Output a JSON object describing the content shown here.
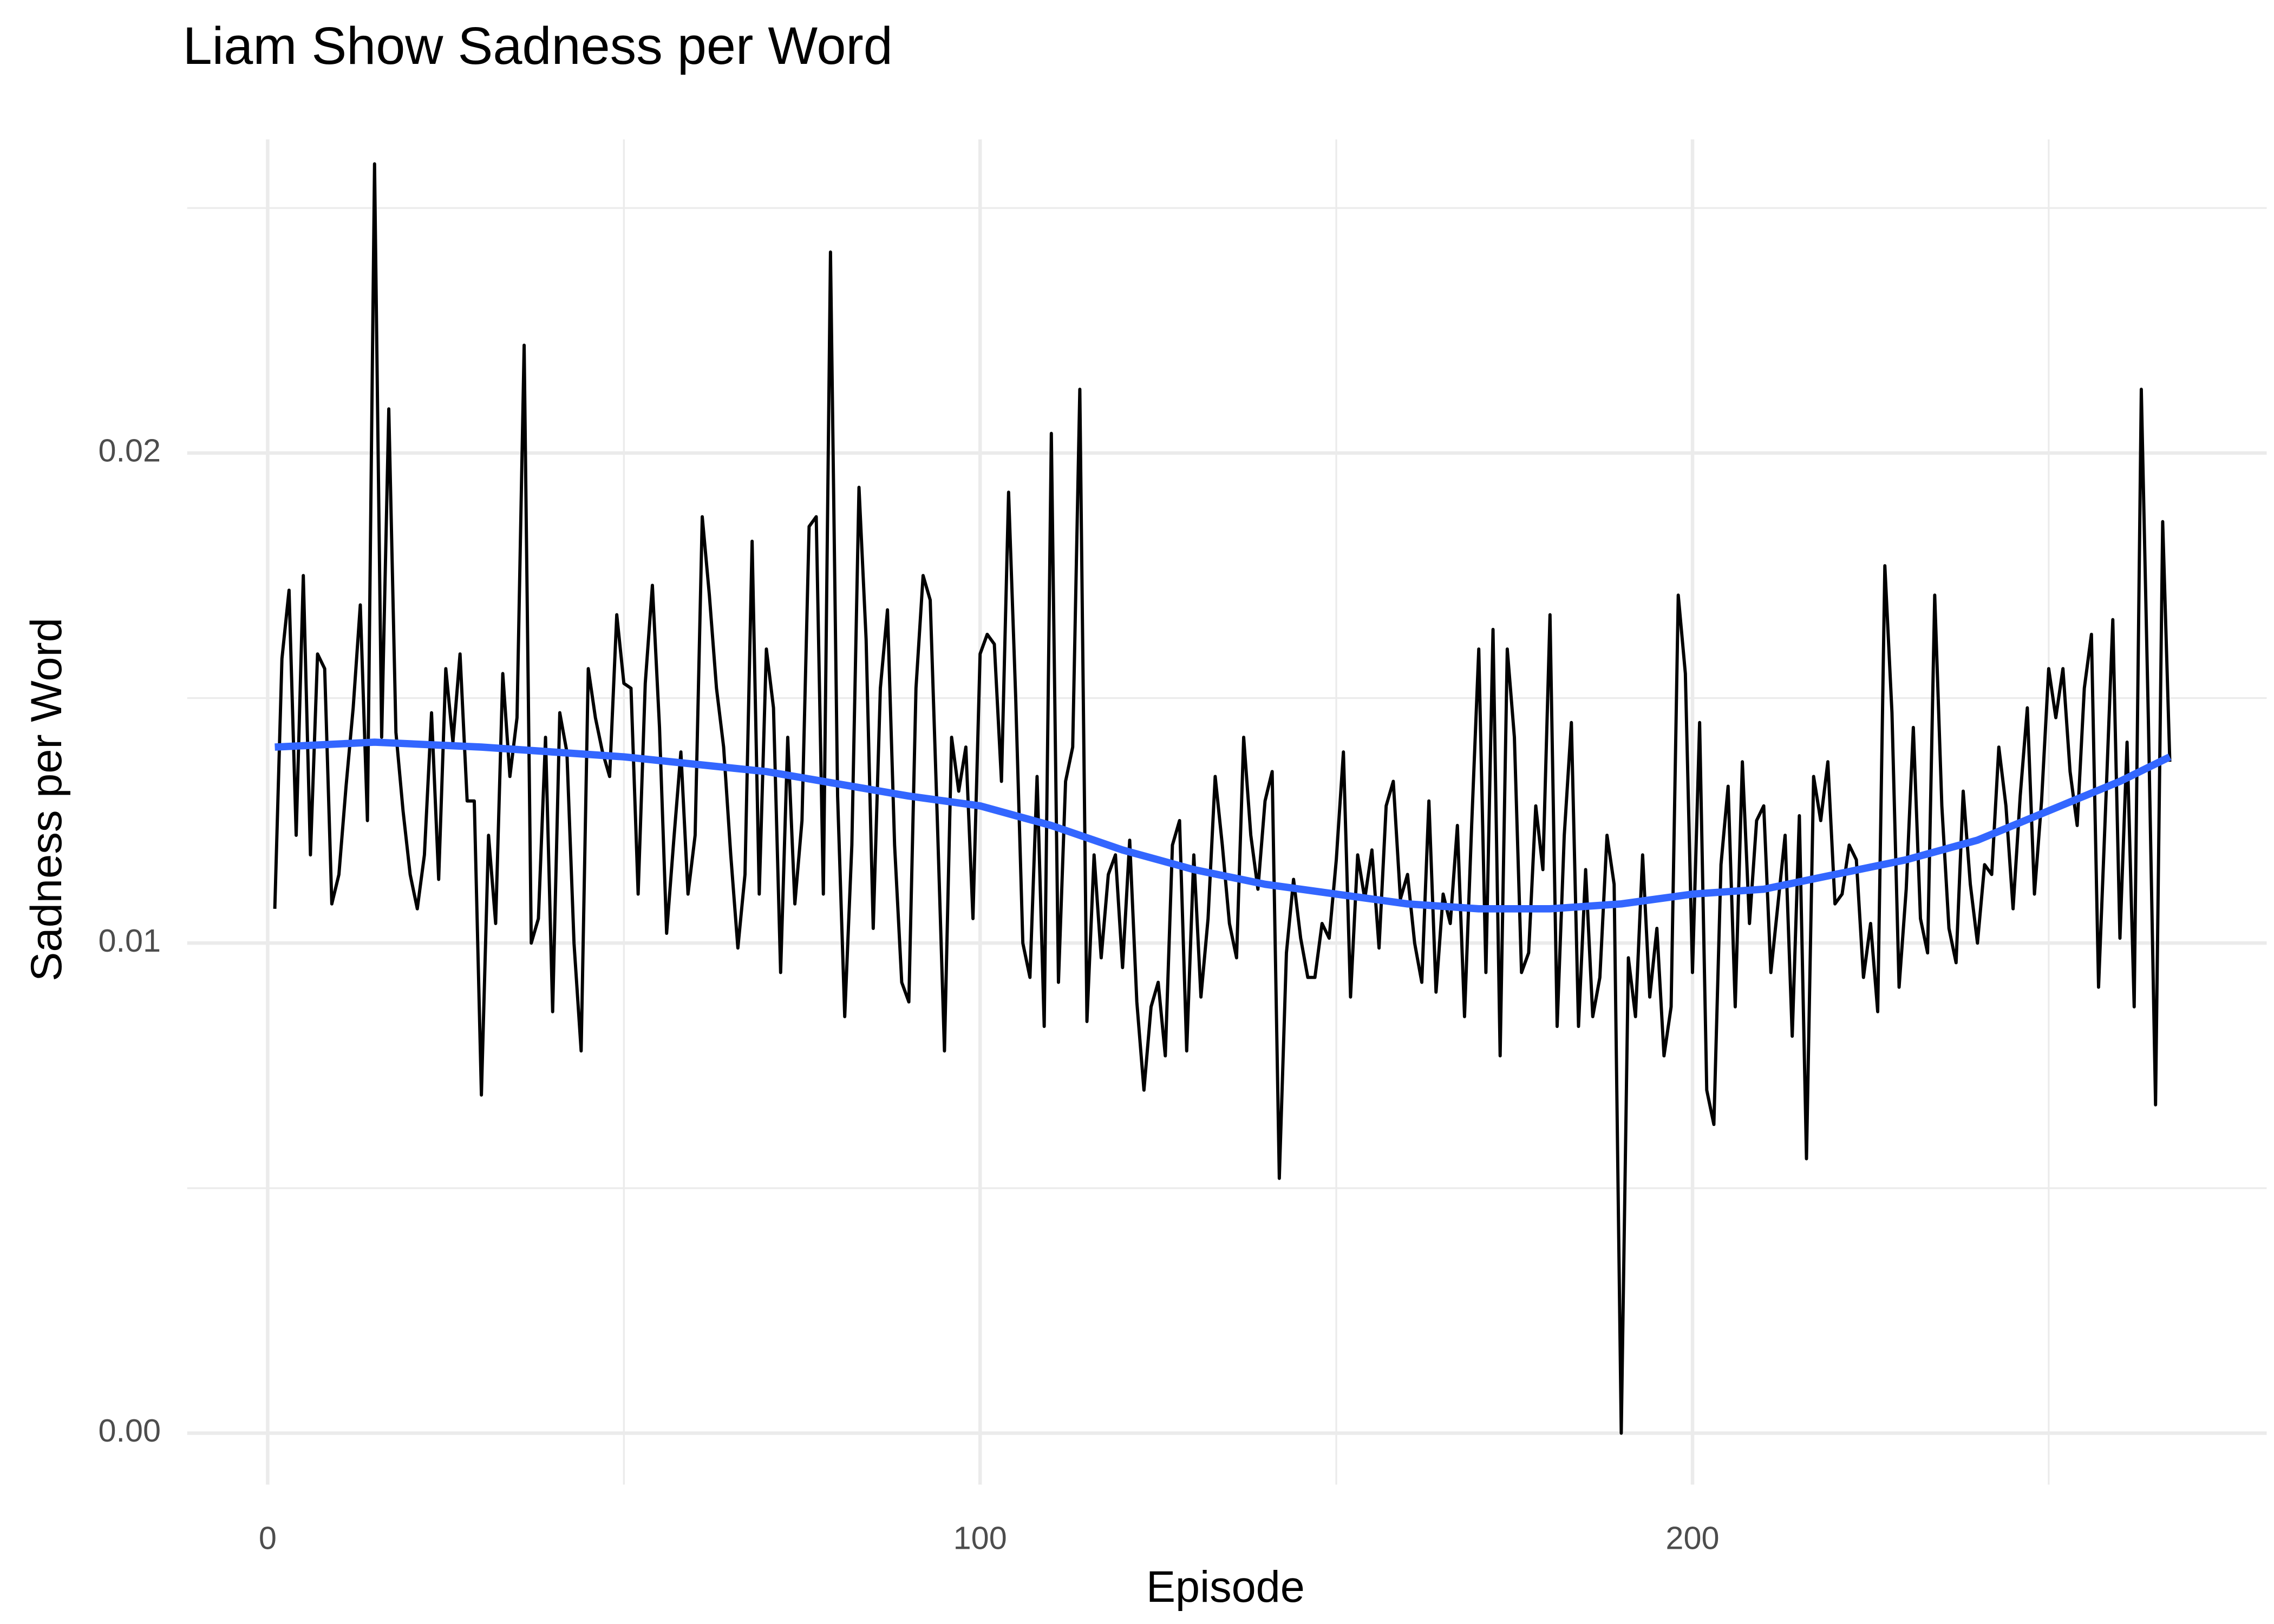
{
  "chart_data": {
    "type": "line",
    "title": "Liam Show Sadness per Word",
    "x_label": "Episode",
    "y_label": "Sadness per Word",
    "grid": true,
    "xlim": [
      -11.3,
      280.6
    ],
    "ylim": [
      -0.00105,
      0.0264
    ],
    "xticks": [
      0,
      100,
      200
    ],
    "xminor_ticks": [
      50,
      150,
      250
    ],
    "yticks": [
      {
        "value": 0,
        "label": "0.00"
      },
      0.01,
      0.02
    ],
    "yminor_ticks": [
      0.005,
      0.015,
      0.025
    ],
    "series": [
      {
        "color": "#000000",
        "x": [
          1,
          2,
          3,
          4,
          5,
          6,
          7,
          8,
          9,
          10,
          11,
          12,
          13,
          14,
          15,
          16,
          17,
          18,
          19,
          20,
          21,
          22,
          23,
          24,
          25,
          26,
          27,
          28,
          29,
          30,
          31,
          32,
          33,
          34,
          35,
          36,
          37,
          38,
          39,
          40,
          41,
          42,
          43,
          44,
          45,
          46,
          47,
          48,
          49,
          50,
          51,
          52,
          53,
          54,
          55,
          56,
          57,
          58,
          59,
          60,
          61,
          62,
          63,
          64,
          65,
          66,
          67,
          68,
          69,
          70,
          71,
          72,
          73,
          74,
          75,
          76,
          77,
          78,
          79,
          80,
          81,
          82,
          83,
          84,
          85,
          86,
          87,
          88,
          89,
          90,
          91,
          92,
          93,
          94,
          95,
          96,
          97,
          98,
          99,
          100,
          101,
          102,
          103,
          104,
          105,
          106,
          107,
          108,
          109,
          110,
          111,
          112,
          113,
          114,
          115,
          116,
          117,
          118,
          119,
          120,
          121,
          122,
          123,
          124,
          125,
          126,
          127,
          128,
          129,
          130,
          131,
          132,
          133,
          134,
          135,
          136,
          137,
          138,
          139,
          140,
          141,
          142,
          143,
          144,
          145,
          146,
          147,
          148,
          149,
          150,
          151,
          152,
          153,
          154,
          155,
          156,
          157,
          158,
          159,
          160,
          161,
          162,
          163,
          164,
          165,
          166,
          167,
          168,
          169,
          170,
          171,
          172,
          173,
          174,
          175,
          176,
          177,
          178,
          179,
          180,
          181,
          182,
          183,
          184,
          185,
          186,
          187,
          188,
          189,
          190,
          191,
          192,
          193,
          194,
          195,
          196,
          197,
          198,
          199,
          200,
          201,
          202,
          203,
          204,
          205,
          206,
          207,
          208,
          209,
          210,
          211,
          212,
          213,
          214,
          215,
          216,
          217,
          218,
          219,
          220,
          221,
          222,
          223,
          224,
          225,
          226,
          227,
          228,
          229,
          230,
          231,
          232,
          233,
          234,
          235,
          236,
          237,
          238,
          239,
          240,
          241,
          242,
          243,
          244,
          245,
          246,
          247,
          248,
          249,
          250,
          251,
          252,
          253,
          254,
          255,
          256,
          257,
          258,
          259,
          260,
          261,
          262,
          263,
          264,
          265,
          266,
          267
        ],
        "values": [
          0.0107,
          0.0158,
          0.0172,
          0.0122,
          0.0175,
          0.0118,
          0.0159,
          0.0156,
          0.0108,
          0.0114,
          0.0132,
          0.0148,
          0.0169,
          0.0125,
          0.0259,
          0.0142,
          0.0209,
          0.0143,
          0.0127,
          0.0114,
          0.0107,
          0.0118,
          0.0147,
          0.0113,
          0.0156,
          0.0141,
          0.0159,
          0.0129,
          0.0129,
          0.0069,
          0.0122,
          0.0104,
          0.0155,
          0.0134,
          0.0146,
          0.0222,
          0.01,
          0.0105,
          0.0142,
          0.0086,
          0.0147,
          0.0139,
          0.01,
          0.0078,
          0.0156,
          0.0146,
          0.0139,
          0.0134,
          0.0167,
          0.0153,
          0.0152,
          0.011,
          0.0153,
          0.0173,
          0.0144,
          0.0102,
          0.0121,
          0.0139,
          0.011,
          0.0122,
          0.0187,
          0.0171,
          0.0152,
          0.014,
          0.0118,
          0.0099,
          0.0114,
          0.0182,
          0.011,
          0.016,
          0.0148,
          0.0094,
          0.0142,
          0.0108,
          0.0125,
          0.0185,
          0.0187,
          0.011,
          0.0241,
          0.013,
          0.0085,
          0.012,
          0.0193,
          0.0162,
          0.0103,
          0.0152,
          0.0168,
          0.012,
          0.0092,
          0.0088,
          0.0152,
          0.0175,
          0.017,
          0.0125,
          0.0078,
          0.0142,
          0.0131,
          0.014,
          0.0105,
          0.0159,
          0.0163,
          0.0161,
          0.0133,
          0.0192,
          0.015,
          0.01,
          0.0093,
          0.0134,
          0.0083,
          0.0204,
          0.0092,
          0.0133,
          0.014,
          0.0213,
          0.0084,
          0.0118,
          0.0097,
          0.0114,
          0.0118,
          0.0095,
          0.0121,
          0.0088,
          0.007,
          0.0087,
          0.0092,
          0.0077,
          0.012,
          0.0125,
          0.0078,
          0.0118,
          0.0089,
          0.0105,
          0.0134,
          0.012,
          0.0104,
          0.0097,
          0.0142,
          0.0122,
          0.0111,
          0.0129,
          0.0135,
          0.0052,
          0.0098,
          0.0113,
          0.0101,
          0.0093,
          0.0093,
          0.0104,
          0.0101,
          0.0117,
          0.0139,
          0.0089,
          0.0118,
          0.0109,
          0.0119,
          0.0099,
          0.0128,
          0.0133,
          0.0109,
          0.0114,
          0.01,
          0.0092,
          0.0129,
          0.009,
          0.011,
          0.0104,
          0.0124,
          0.0085,
          0.0124,
          0.016,
          0.0094,
          0.0164,
          0.0077,
          0.016,
          0.0142,
          0.0094,
          0.0098,
          0.0128,
          0.0115,
          0.0167,
          0.0083,
          0.0122,
          0.0145,
          0.0083,
          0.0115,
          0.0085,
          0.0093,
          0.0122,
          0.0112,
          0.0,
          0.0097,
          0.0085,
          0.0118,
          0.0089,
          0.0103,
          0.0077,
          0.0087,
          0.0171,
          0.0155,
          0.0094,
          0.0145,
          0.007,
          0.0063,
          0.0116,
          0.0132,
          0.0087,
          0.0137,
          0.0104,
          0.0125,
          0.0128,
          0.0094,
          0.0108,
          0.0122,
          0.0081,
          0.0126,
          0.0056,
          0.0134,
          0.0125,
          0.0137,
          0.0108,
          0.011,
          0.012,
          0.0117,
          0.0093,
          0.0104,
          0.0086,
          0.0177,
          0.0147,
          0.0091,
          0.0111,
          0.0144,
          0.0105,
          0.0098,
          0.0171,
          0.0128,
          0.0103,
          0.0096,
          0.0131,
          0.0112,
          0.01,
          0.0116,
          0.0114,
          0.014,
          0.0128,
          0.0107,
          0.013,
          0.0148,
          0.011,
          0.0129,
          0.0156,
          0.0146,
          0.0156,
          0.0135,
          0.0124,
          0.0152,
          0.0163,
          0.0091,
          0.0128,
          0.0166,
          0.0101,
          0.0141,
          0.0087,
          0.0213,
          0.0145,
          0.0067,
          0.0186,
          0.0137
        ]
      },
      {
        "color": "#3366ff",
        "x": [
          1,
          15,
          30,
          50,
          70,
          90,
          100,
          110,
          120,
          130,
          140,
          150,
          160,
          170,
          180,
          190,
          200,
          210,
          220,
          230,
          240,
          250,
          260,
          267
        ],
        "values": [
          0.014,
          0.0141,
          0.014,
          0.0138,
          0.0135,
          0.013,
          0.0128,
          0.0124,
          0.0119,
          0.0115,
          0.0112,
          0.011,
          0.0108,
          0.0107,
          0.0107,
          0.0108,
          0.011,
          0.0111,
          0.0114,
          0.0117,
          0.0121,
          0.0127,
          0.0133,
          0.0138
        ]
      }
    ]
  }
}
